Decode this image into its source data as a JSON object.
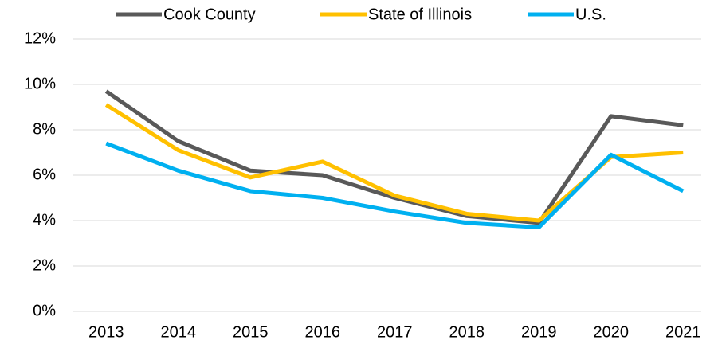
{
  "chart_data": {
    "type": "line",
    "categories": [
      "2013",
      "2014",
      "2015",
      "2016",
      "2017",
      "2018",
      "2019",
      "2020",
      "2021"
    ],
    "series": [
      {
        "name": "Cook County",
        "color": "#595959",
        "values": [
          9.7,
          7.5,
          6.2,
          6.0,
          5.0,
          4.2,
          3.9,
          8.6,
          8.2
        ]
      },
      {
        "name": "State of Illinois",
        "color": "#FFC000",
        "values": [
          9.1,
          7.1,
          5.9,
          6.6,
          5.1,
          4.3,
          4.0,
          6.8,
          7.0
        ]
      },
      {
        "name": "U.S.",
        "color": "#00B0F0",
        "values": [
          7.4,
          6.2,
          5.3,
          5.0,
          4.4,
          3.9,
          3.7,
          6.9,
          5.3
        ]
      }
    ],
    "ylim": [
      0,
      12
    ],
    "yticks": [
      {
        "value": 0,
        "label": "0%"
      },
      {
        "value": 2,
        "label": "2%"
      },
      {
        "value": 4,
        "label": "4%"
      },
      {
        "value": 6,
        "label": "6%"
      },
      {
        "value": 8,
        "label": "8%"
      },
      {
        "value": 10,
        "label": "10%"
      },
      {
        "value": 12,
        "label": "12%"
      }
    ],
    "grid": true,
    "legend": "top"
  }
}
